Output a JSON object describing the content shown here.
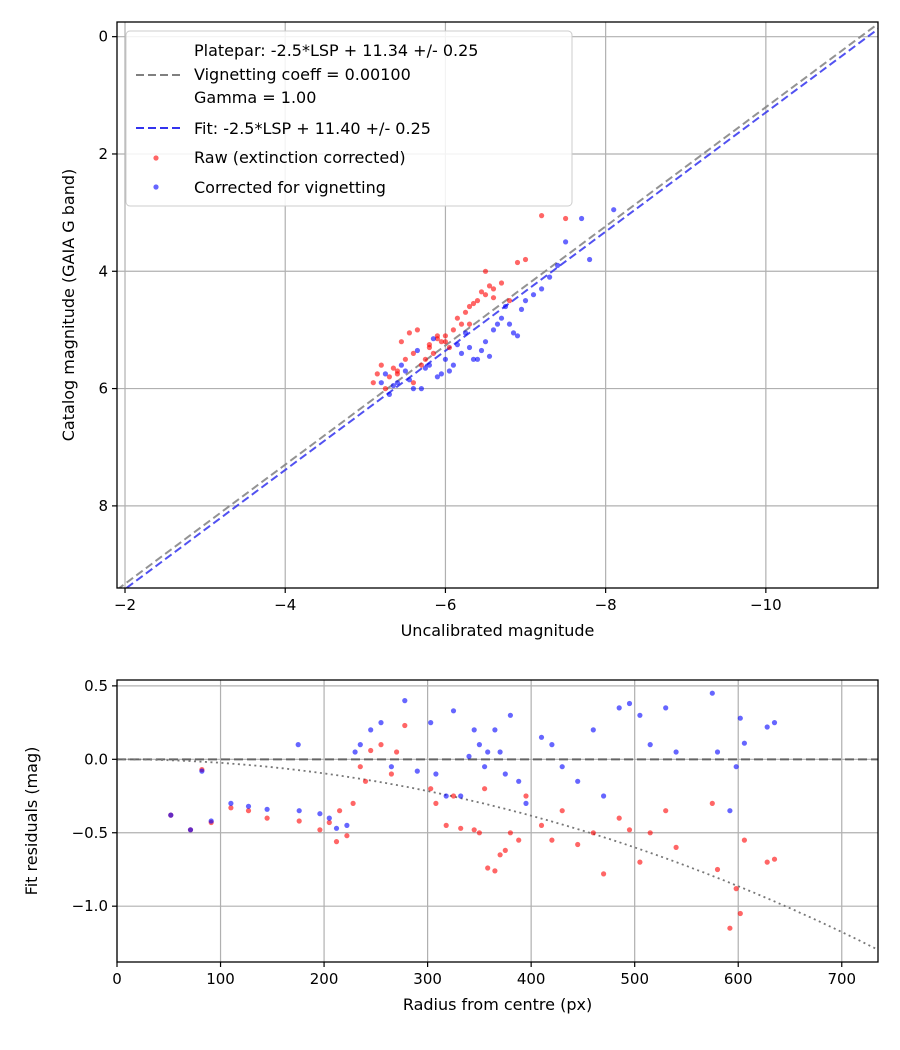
{
  "chart_data": [
    {
      "type": "scatter",
      "xlabel": "Uncalibrated magnitude",
      "ylabel": "Catalog magnitude (GAIA G band)",
      "xlim": [
        -1.9,
        -11.4
      ],
      "ylim": [
        9.4,
        -0.25
      ],
      "x_ticks": [
        -2,
        -4,
        -6,
        -8,
        -10
      ],
      "x_tick_labels": [
        "−2",
        "−4",
        "−6",
        "−8",
        "−10"
      ],
      "y_ticks": [
        0,
        2,
        4,
        6,
        8
      ],
      "y_tick_labels": [
        "0",
        "2",
        "4",
        "6",
        "8"
      ],
      "grid": true,
      "legend_position": "top-left",
      "legend": {
        "platepar_line1": "Platepar: -2.5*LSP + 11.34 +/- 0.25",
        "platepar_line2": "Vignetting coeff = 0.00100",
        "platepar_line3": "Gamma = 1.00",
        "fit": "Fit: -2.5*LSP + 11.40 +/- 0.25",
        "raw": "Raw (extinction corrected)",
        "corrected": "Corrected for vignetting"
      },
      "lines": [
        {
          "name": "platepar",
          "color": "#808080",
          "style": "dashed",
          "x": [
            -1.9,
            -11.4
          ],
          "y": [
            9.43,
            -0.22
          ]
        },
        {
          "name": "fit",
          "color": "#3333ee",
          "style": "dashed",
          "x": [
            -1.9,
            -11.4
          ],
          "y": [
            9.52,
            -0.13
          ]
        }
      ],
      "series": [
        {
          "name": "Raw (extinction corrected)",
          "color": "#ff0000",
          "x": [
            -5.2,
            -5.3,
            -5.1,
            -5.5,
            -5.4,
            -5.6,
            -5.7,
            -5.8,
            -5.9,
            -6.0,
            -6.1,
            -6.2,
            -5.75,
            -5.85,
            -5.95,
            -6.05,
            -6.15,
            -6.25,
            -6.3,
            -6.4,
            -6.5,
            -6.6,
            -6.7,
            -6.45,
            -6.55,
            -6.35,
            -5.65,
            -5.45,
            -5.35,
            -5.25,
            -5.55,
            -6.8,
            -6.9,
            -7.0,
            -7.2,
            -7.5,
            -6.5,
            -5.6,
            -5.9,
            -6.3,
            -5.4,
            -6.0,
            -6.6,
            -5.8,
            -5.15
          ],
          "y": [
            5.6,
            5.8,
            5.9,
            5.5,
            5.7,
            5.4,
            5.6,
            5.3,
            5.1,
            5.2,
            5.0,
            4.9,
            5.5,
            5.4,
            5.2,
            5.3,
            4.8,
            4.7,
            4.6,
            4.5,
            4.4,
            4.3,
            4.2,
            4.35,
            4.25,
            4.55,
            5.0,
            5.2,
            5.65,
            6.0,
            5.05,
            4.5,
            3.85,
            3.8,
            3.05,
            3.1,
            4.0,
            5.9,
            5.15,
            4.9,
            5.75,
            5.1,
            4.45,
            5.25,
            5.75
          ]
        },
        {
          "name": "Corrected for vignetting",
          "color": "#0000ff",
          "x": [
            -5.2,
            -5.3,
            -5.4,
            -5.5,
            -5.6,
            -5.7,
            -5.8,
            -5.9,
            -6.0,
            -6.1,
            -6.2,
            -6.3,
            -6.4,
            -6.5,
            -6.6,
            -6.7,
            -6.8,
            -6.9,
            -7.0,
            -7.1,
            -7.2,
            -7.3,
            -7.5,
            -7.7,
            -7.8,
            -8.1,
            -6.05,
            -6.15,
            -6.25,
            -6.35,
            -6.45,
            -6.55,
            -6.65,
            -5.45,
            -5.55,
            -5.65,
            -5.75,
            -5.85,
            -5.95,
            -7.4,
            -6.75,
            -6.85,
            -6.95,
            -5.35,
            -5.25
          ],
          "y": [
            5.9,
            6.1,
            5.9,
            5.7,
            6.0,
            6.0,
            5.6,
            5.8,
            5.5,
            5.6,
            5.4,
            5.3,
            5.5,
            5.2,
            5.0,
            4.8,
            4.9,
            5.1,
            4.5,
            4.4,
            4.3,
            4.1,
            3.5,
            3.1,
            3.8,
            2.95,
            5.7,
            5.25,
            5.05,
            5.5,
            5.35,
            5.45,
            4.9,
            5.6,
            5.85,
            5.35,
            5.65,
            5.15,
            5.75,
            3.9,
            4.6,
            5.05,
            4.65,
            5.95,
            5.75
          ]
        }
      ]
    },
    {
      "type": "scatter",
      "xlabel": "Radius from centre (px)",
      "ylabel": "Fit residuals (mag)",
      "xlim": [
        0,
        735
      ],
      "ylim": [
        -1.38,
        0.54
      ],
      "x_ticks": [
        0,
        100,
        200,
        300,
        400,
        500,
        600,
        700
      ],
      "x_tick_labels": [
        "0",
        "100",
        "200",
        "300",
        "400",
        "500",
        "600",
        "700"
      ],
      "y_ticks": [
        0.5,
        0.0,
        -0.5,
        -1.0
      ],
      "y_tick_labels": [
        "0.5",
        "0.0",
        "−0.5",
        "−1.0"
      ],
      "grid": true,
      "lines": [
        {
          "name": "zero",
          "color": "#555555",
          "style": "dashed",
          "x": [
            0,
            735
          ],
          "y": [
            0,
            0
          ]
        },
        {
          "name": "vignetting-model",
          "color": "#777777",
          "style": "dotted",
          "coeff": 0.001
        }
      ],
      "series": [
        {
          "name": "Raw (extinction corrected)",
          "color": "#ff0000",
          "x": [
            52,
            71,
            82,
            91,
            110,
            127,
            145,
            176,
            196,
            205,
            212,
            222,
            228,
            235,
            245,
            255,
            265,
            278,
            303,
            308,
            318,
            325,
            332,
            345,
            350,
            355,
            358,
            365,
            370,
            375,
            380,
            388,
            395,
            410,
            420,
            430,
            445,
            460,
            470,
            485,
            495,
            505,
            515,
            530,
            540,
            575,
            580,
            592,
            598,
            602,
            606,
            628,
            635,
            215,
            240,
            270
          ],
          "y": [
            -0.38,
            -0.48,
            -0.07,
            -0.43,
            -0.33,
            -0.35,
            -0.4,
            -0.42,
            -0.48,
            -0.43,
            -0.56,
            -0.52,
            -0.3,
            -0.05,
            0.06,
            0.1,
            -0.1,
            0.23,
            -0.2,
            -0.3,
            -0.45,
            -0.25,
            -0.47,
            -0.48,
            -0.5,
            -0.2,
            -0.74,
            -0.76,
            -0.65,
            -0.62,
            -0.5,
            -0.55,
            -0.25,
            -0.45,
            -0.55,
            -0.35,
            -0.58,
            -0.5,
            -0.78,
            -0.4,
            -0.48,
            -0.7,
            -0.5,
            -0.35,
            -0.6,
            -0.3,
            -0.75,
            -1.15,
            -0.88,
            -1.05,
            -0.55,
            -0.7,
            -0.68,
            -0.35,
            -0.15,
            0.05
          ]
        },
        {
          "name": "Corrected for vignetting",
          "color": "#0000ff",
          "x": [
            52,
            71,
            82,
            91,
            110,
            127,
            145,
            176,
            196,
            205,
            212,
            222,
            235,
            245,
            255,
            265,
            278,
            303,
            308,
            318,
            325,
            332,
            345,
            350,
            355,
            358,
            365,
            370,
            375,
            380,
            388,
            395,
            410,
            420,
            430,
            445,
            460,
            470,
            485,
            495,
            505,
            515,
            530,
            540,
            575,
            580,
            592,
            598,
            602,
            606,
            628,
            635,
            175,
            230,
            290,
            340
          ],
          "y": [
            -0.38,
            -0.48,
            -0.08,
            -0.42,
            -0.3,
            -0.32,
            -0.34,
            -0.35,
            -0.37,
            -0.4,
            -0.47,
            -0.45,
            0.1,
            0.2,
            0.25,
            -0.05,
            0.4,
            0.25,
            -0.1,
            -0.25,
            0.33,
            -0.25,
            0.2,
            0.1,
            -0.05,
            0.05,
            0.2,
            0.05,
            -0.1,
            0.3,
            -0.15,
            -0.3,
            0.15,
            0.1,
            -0.05,
            -0.15,
            0.2,
            -0.25,
            0.35,
            0.38,
            0.3,
            0.1,
            0.35,
            0.05,
            0.45,
            0.05,
            -0.35,
            -0.05,
            0.28,
            0.11,
            0.22,
            0.25,
            0.1,
            0.05,
            -0.08,
            0.02
          ]
        }
      ]
    }
  ]
}
